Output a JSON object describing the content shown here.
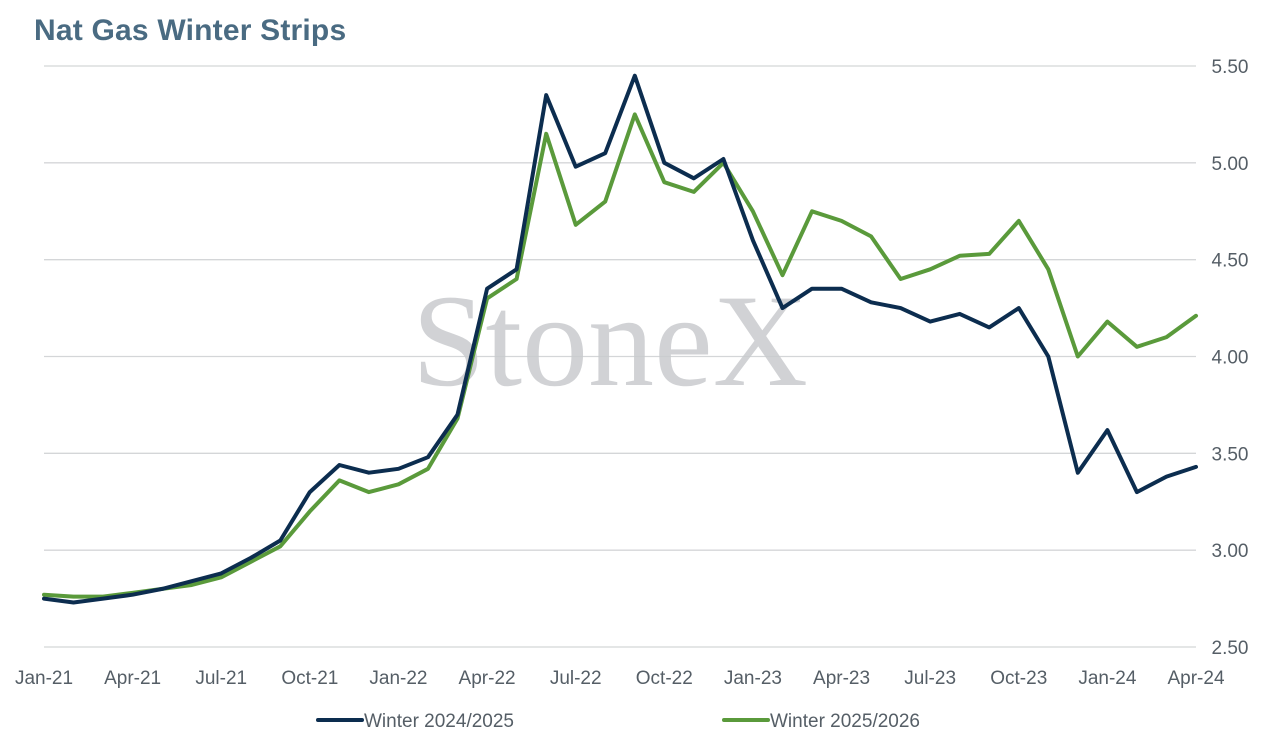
{
  "chart_data": {
    "type": "line",
    "title": "Nat Gas Winter Strips",
    "watermark": "StoneX",
    "x_tick_labels": [
      "Jan-21",
      "Apr-21",
      "Jul-21",
      "Oct-21",
      "Jan-22",
      "Apr-22",
      "Jul-22",
      "Oct-22",
      "Jan-23",
      "Apr-23",
      "Jul-23",
      "Oct-23",
      "Jan-24",
      "Apr-24"
    ],
    "x_range": [
      "2021-01",
      "2024-04"
    ],
    "y_tick_labels": [
      "2.50",
      "3.00",
      "3.50",
      "4.00",
      "4.50",
      "5.00",
      "5.50"
    ],
    "ylim": [
      2.5,
      5.5
    ],
    "y_axis_side": "right",
    "grid": "horizontal",
    "legend_position": "bottom",
    "x": [
      "2021-01",
      "2021-02",
      "2021-03",
      "2021-04",
      "2021-05",
      "2021-06",
      "2021-07",
      "2021-08",
      "2021-09",
      "2021-10",
      "2021-11",
      "2021-12",
      "2022-01",
      "2022-02",
      "2022-03",
      "2022-04",
      "2022-05",
      "2022-06",
      "2022-07",
      "2022-08",
      "2022-09",
      "2022-10",
      "2022-11",
      "2022-12",
      "2023-01",
      "2023-02",
      "2023-03",
      "2023-04",
      "2023-05",
      "2023-06",
      "2023-07",
      "2023-08",
      "2023-09",
      "2023-10",
      "2023-11",
      "2023-12",
      "2024-01",
      "2024-02",
      "2024-03",
      "2024-04"
    ],
    "series": [
      {
        "name": "Winter 2024/2025",
        "color": "#0c2d4f",
        "values": [
          2.75,
          2.73,
          2.75,
          2.77,
          2.8,
          2.84,
          2.88,
          2.96,
          3.05,
          3.3,
          3.44,
          3.4,
          3.42,
          3.48,
          3.7,
          4.35,
          4.45,
          5.35,
          4.98,
          5.05,
          5.45,
          5.0,
          4.92,
          5.02,
          4.6,
          4.25,
          4.35,
          4.35,
          4.28,
          4.25,
          4.18,
          4.22,
          4.15,
          4.25,
          4.0,
          3.4,
          3.62,
          3.3,
          3.38,
          3.43
        ]
      },
      {
        "name": "Winter 2025/2026",
        "color": "#5a9a3b",
        "values": [
          2.77,
          2.76,
          2.76,
          2.78,
          2.8,
          2.82,
          2.86,
          2.94,
          3.02,
          3.2,
          3.36,
          3.3,
          3.34,
          3.42,
          3.68,
          4.3,
          4.4,
          5.15,
          4.68,
          4.8,
          5.25,
          4.9,
          4.85,
          5.0,
          4.75,
          4.42,
          4.75,
          4.7,
          4.62,
          4.4,
          4.45,
          4.52,
          4.53,
          4.7,
          4.45,
          4.0,
          4.18,
          4.05,
          4.1,
          4.21
        ]
      }
    ]
  }
}
